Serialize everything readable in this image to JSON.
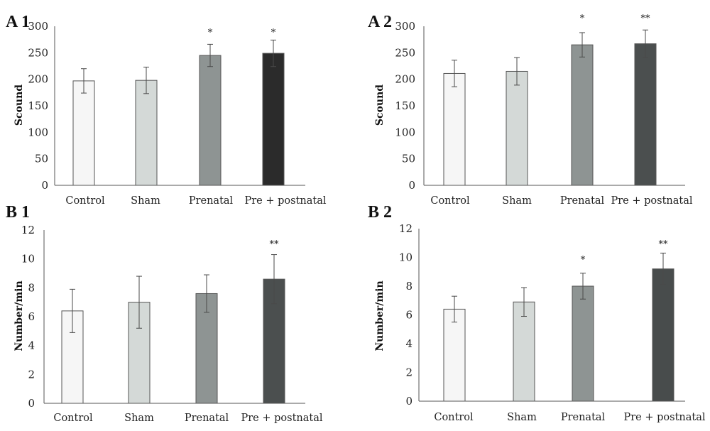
{
  "chart_data": [
    {
      "type": "bar",
      "panel_label": "A 1",
      "ylabel": "Scound",
      "ylim": [
        0,
        300
      ],
      "yticks": [
        0,
        50,
        100,
        150,
        200,
        250,
        300
      ],
      "categories": [
        "Control",
        "Sham",
        "Prenatal",
        "Pre + postnatal"
      ],
      "values": [
        197,
        198,
        245,
        249
      ],
      "errors": [
        23,
        25,
        21,
        25
      ],
      "significance": [
        null,
        null,
        "*",
        "*"
      ],
      "colors": [
        "#f6f6f6",
        "#d4d9d7",
        "#8e9493",
        "#2b2b2b"
      ],
      "grid": false
    },
    {
      "type": "bar",
      "panel_label": "A 2",
      "ylabel": "Scound",
      "ylim": [
        0,
        300
      ],
      "yticks": [
        0,
        50,
        100,
        150,
        200,
        250,
        300
      ],
      "categories": [
        "Control",
        "Sham",
        "Prenatal",
        "Pre + postnatal"
      ],
      "values": [
        211,
        215,
        265,
        267
      ],
      "errors": [
        25,
        26,
        23,
        26
      ],
      "significance": [
        null,
        null,
        "*",
        "**"
      ],
      "colors": [
        "#f6f6f6",
        "#d4d9d7",
        "#8e9493",
        "#4b4f4f"
      ],
      "grid": false
    },
    {
      "type": "bar",
      "panel_label": "B 1",
      "ylabel": "Number/min",
      "ylim": [
        0,
        12
      ],
      "yticks": [
        0,
        2,
        4,
        6,
        8,
        10,
        12
      ],
      "categories": [
        "Control",
        "Sham",
        "Prenatal",
        "Pre + postnatal"
      ],
      "values": [
        6.4,
        7.0,
        7.6,
        8.6
      ],
      "errors": [
        1.5,
        1.8,
        1.3,
        1.7
      ],
      "significance": [
        null,
        null,
        null,
        "**"
      ],
      "colors": [
        "#f6f6f6",
        "#d4d9d7",
        "#8e9493",
        "#4b4f4f"
      ],
      "grid": false
    },
    {
      "type": "bar",
      "panel_label": "B 2",
      "ylabel": "Number/min",
      "ylim": [
        0,
        12
      ],
      "yticks": [
        0,
        2,
        4,
        6,
        8,
        10,
        12
      ],
      "categories": [
        "Control",
        "Sham",
        "Prenatal",
        "Pre + postnatal"
      ],
      "values": [
        6.4,
        6.9,
        8.0,
        9.2
      ],
      "errors": [
        0.9,
        1.0,
        0.9,
        1.1
      ],
      "significance": [
        null,
        null,
        "*",
        "**"
      ],
      "colors": [
        "#f6f6f6",
        "#d4d9d7",
        "#8e9493",
        "#484c4c"
      ],
      "grid": false
    }
  ]
}
